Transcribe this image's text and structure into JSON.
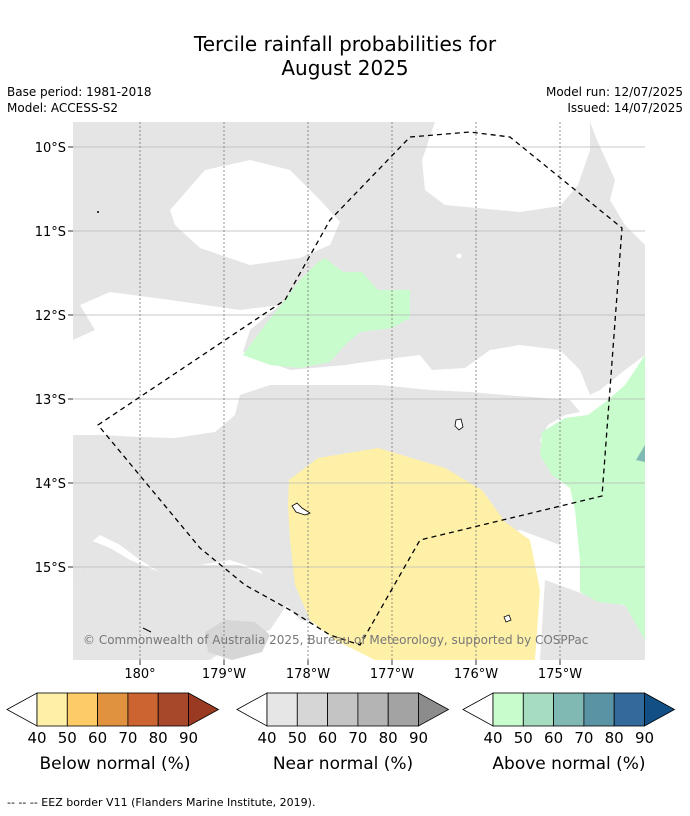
{
  "title_line1": "Tercile rainfall probabilities for",
  "title_line2": "August 2025",
  "base_period": "Base period: 1981-2018",
  "model": "Model: ACCESS-S2",
  "model_run": "Model run: 12/07/2025",
  "issued": "Issued: 14/07/2025",
  "copyright": "© Commonwealth of Australia 2025, Bureau of Meteorology, supported by COSPPac",
  "lat_labels": [
    "10°S",
    "11°S",
    "12°S",
    "13°S",
    "14°S",
    "15°S"
  ],
  "lon_labels": [
    "180°",
    "179°W",
    "178°W",
    "177°W",
    "176°W",
    "175°W"
  ],
  "colorbars": [
    {
      "label": "Below normal (%)",
      "colors": [
        "#fff0a8",
        "#fdcc66",
        "#e0923f",
        "#cc6431",
        "#a8482a",
        "#9a3a22"
      ]
    },
    {
      "label": "Near normal (%)",
      "colors": [
        "#e6e6e6",
        "#d6d6d6",
        "#c4c4c4",
        "#b4b4b4",
        "#a3a3a3",
        "#8c8c8c"
      ]
    },
    {
      "label": "Above normal (%)",
      "colors": [
        "#c8fccc",
        "#a6dcc0",
        "#80b8b4",
        "#5a94a4",
        "#326a9c",
        "#124f84"
      ]
    }
  ],
  "tick_values": [
    "40",
    "50",
    "60",
    "70",
    "80",
    "90"
  ],
  "footer": "--  --  -- EEZ border V11 (Flanders Marine Institute, 2019)."
}
